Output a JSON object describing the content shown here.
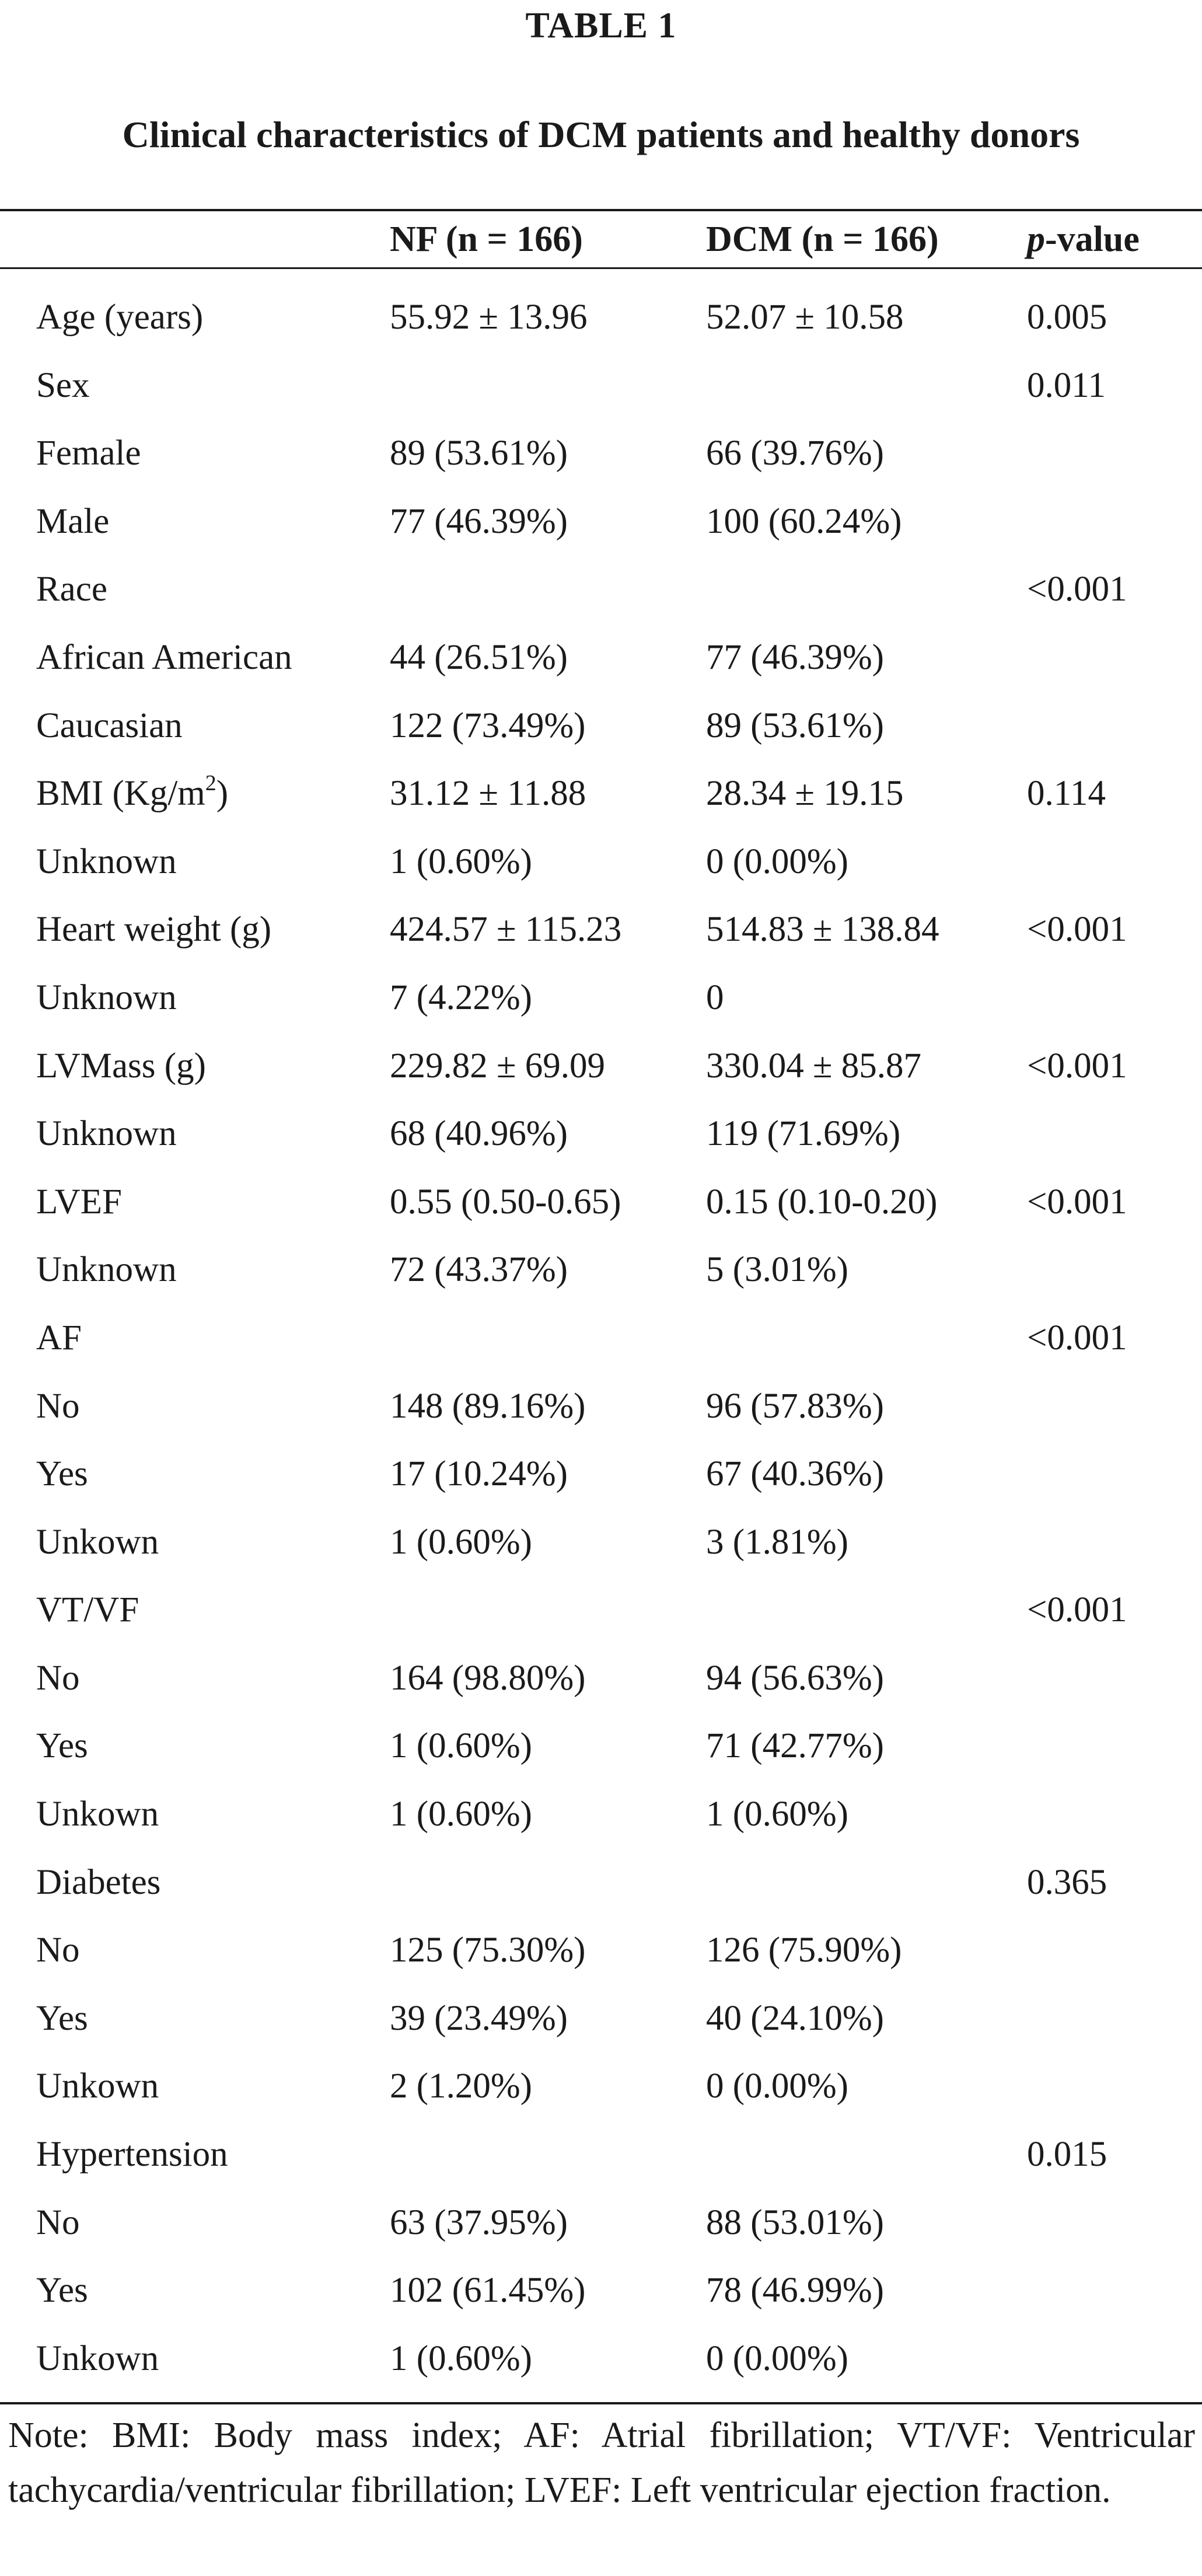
{
  "table": {
    "label": "TABLE 1",
    "title": "Clinical characteristics of DCM patients and healthy donors",
    "headers": {
      "col0": "",
      "col1": "NF (n = 166)",
      "col2": "DCM (n = 166)",
      "col3_italic": "p",
      "col3_rest": "-value"
    },
    "rows": [
      {
        "label": "Age (years)",
        "nf": "55.92 ± 13.96",
        "dcm": "52.07 ± 10.58",
        "p": "0.005"
      },
      {
        "label": "Sex",
        "nf": "",
        "dcm": "",
        "p": "0.011"
      },
      {
        "label": "Female",
        "nf": "89 (53.61%)",
        "dcm": "66 (39.76%)",
        "p": ""
      },
      {
        "label": "Male",
        "nf": "77 (46.39%)",
        "dcm": "100 (60.24%)",
        "p": ""
      },
      {
        "label": "Race",
        "nf": "",
        "dcm": "",
        "p": "<0.001"
      },
      {
        "label": "African American",
        "nf": "44 (26.51%)",
        "dcm": "77 (46.39%)",
        "p": ""
      },
      {
        "label": "Caucasian",
        "nf": "122 (73.49%)",
        "dcm": "89 (53.61%)",
        "p": ""
      },
      {
        "label": "BMI (Kg/m",
        "label_sup": "2",
        "label_after": ")",
        "nf": "31.12 ± 11.88",
        "dcm": "28.34 ± 19.15",
        "p": "0.114"
      },
      {
        "label": "Unknown",
        "nf": "1 (0.60%)",
        "dcm": "0 (0.00%)",
        "p": ""
      },
      {
        "label": "Heart weight (g)",
        "nf": "424.57 ± 115.23",
        "dcm": "514.83 ± 138.84",
        "p": "<0.001"
      },
      {
        "label": "Unknown",
        "nf": "7 (4.22%)",
        "dcm": "0",
        "p": ""
      },
      {
        "label": "LVMass (g)",
        "nf": "229.82 ± 69.09",
        "dcm": "330.04 ± 85.87",
        "p": "<0.001"
      },
      {
        "label": "Unknown",
        "nf": "68 (40.96%)",
        "dcm": "119 (71.69%)",
        "p": ""
      },
      {
        "label": "LVEF",
        "nf": "0.55 (0.50-0.65)",
        "dcm": "0.15 (0.10-0.20)",
        "p": "<0.001"
      },
      {
        "label": "Unknown",
        "nf": "72 (43.37%)",
        "dcm": "5 (3.01%)",
        "p": ""
      },
      {
        "label": "AF",
        "nf": "",
        "dcm": "",
        "p": "<0.001"
      },
      {
        "label": "No",
        "nf": "148 (89.16%)",
        "dcm": "96 (57.83%)",
        "p": ""
      },
      {
        "label": "Yes",
        "nf": "17 (10.24%)",
        "dcm": "67 (40.36%)",
        "p": ""
      },
      {
        "label": "Unkown",
        "nf": "1 (0.60%)",
        "dcm": "3 (1.81%)",
        "p": ""
      },
      {
        "label": "VT/VF",
        "nf": "",
        "dcm": "",
        "p": "<0.001"
      },
      {
        "label": "No",
        "nf": "164 (98.80%)",
        "dcm": "94 (56.63%)",
        "p": ""
      },
      {
        "label": "Yes",
        "nf": "1 (0.60%)",
        "dcm": "71 (42.77%)",
        "p": ""
      },
      {
        "label": "Unkown",
        "nf": "1 (0.60%)",
        "dcm": "1 (0.60%)",
        "p": ""
      },
      {
        "label": "Diabetes",
        "nf": "",
        "dcm": "",
        "p": "0.365"
      },
      {
        "label": "No",
        "nf": "125 (75.30%)",
        "dcm": "126 (75.90%)",
        "p": ""
      },
      {
        "label": "Yes",
        "nf": "39 (23.49%)",
        "dcm": "40 (24.10%)",
        "p": ""
      },
      {
        "label": "Unkown",
        "nf": "2 (1.20%)",
        "dcm": "0 (0.00%)",
        "p": ""
      },
      {
        "label": "Hypertension",
        "nf": "",
        "dcm": "",
        "p": "0.015"
      },
      {
        "label": "No",
        "nf": "63 (37.95%)",
        "dcm": "88 (53.01%)",
        "p": ""
      },
      {
        "label": "Yes",
        "nf": "102 (61.45%)",
        "dcm": "78 (46.99%)",
        "p": ""
      },
      {
        "label": "Unkown",
        "nf": "1 (0.60%)",
        "dcm": "0 (0.00%)",
        "p": ""
      }
    ],
    "note": "Note: BMI: Body mass index; AF: Atrial fibrillation; VT/VF: Ventricular tachycardia/ventricular fibrillation; LVEF: Left ventricular ejection fraction."
  }
}
